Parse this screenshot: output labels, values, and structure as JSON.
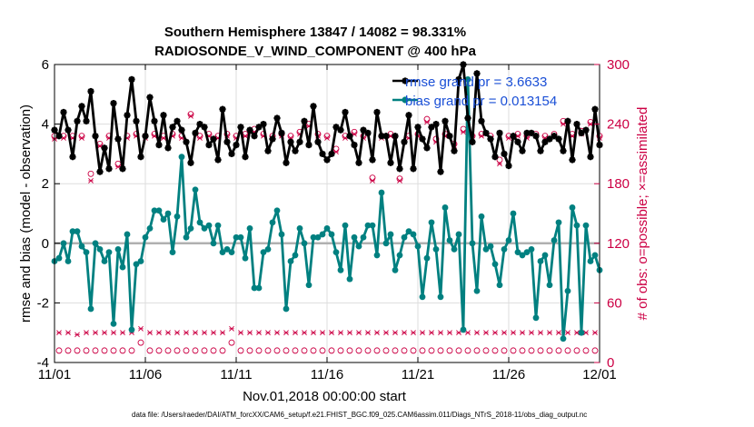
{
  "chart_data": {
    "type": "line",
    "title": "Southern Hemisphere 13847 / 14082 = 98.331%",
    "subtitle": "RADIOSONDE_V_WIND_COMPONENT @ 400 hPa",
    "xlabel": "Nov.01,2018 00:00:00 start",
    "ylabel": "rmse and bias (model - observation)",
    "ylabel_right": "# of obs: o=possible; ×=assimilated",
    "xlim": [
      0,
      30
    ],
    "ylim": [
      -4,
      6
    ],
    "ylim_right": [
      0,
      300
    ],
    "x_ticks": [
      0,
      5,
      10,
      15,
      20,
      25,
      30
    ],
    "x_tick_labels": [
      "11/01",
      "11/06",
      "11/11",
      "11/16",
      "11/21",
      "11/26",
      "12/01"
    ],
    "y_ticks": [
      -4,
      -2,
      0,
      2,
      4,
      6
    ],
    "y_tick_labels": [
      "-4",
      "-2",
      "0",
      "2",
      "4",
      "6"
    ],
    "y_right_ticks": [
      0,
      60,
      120,
      180,
      240,
      300
    ],
    "y_right_tick_labels": [
      "0",
      "60",
      "120",
      "180",
      "240",
      "300"
    ],
    "grid": true,
    "legend_position": "top-right",
    "footer": "data file: /Users/raeder/DAI/ATM_forcXX/CAM6_setup/f.e21.FHIST_BGC.f09_025.CAM6assim.011/Diags_NTrS_2018-11/obs_diag_output.nc",
    "colors": {
      "rmse": "#000000",
      "bias": "#008080",
      "obs": "#cc0044",
      "zero_line": "#b0b0b0"
    },
    "series": [
      {
        "name": "rmse",
        "legend_label": "rmse grand pr = 3.6633",
        "color": "#000000",
        "marker": "star",
        "x": [
          0.0,
          0.25,
          0.5,
          0.75,
          1.0,
          1.25,
          1.5,
          1.75,
          2.0,
          2.25,
          2.5,
          2.75,
          3.0,
          3.25,
          3.5,
          3.75,
          4.0,
          4.25,
          4.5,
          4.75,
          5.0,
          5.25,
          5.5,
          5.75,
          6.0,
          6.25,
          6.5,
          6.75,
          7.0,
          7.25,
          7.5,
          7.75,
          8.0,
          8.25,
          8.5,
          8.75,
          9.0,
          9.25,
          9.5,
          9.75,
          10.0,
          10.25,
          10.5,
          10.75,
          11.0,
          11.25,
          11.5,
          11.75,
          12.0,
          12.25,
          12.5,
          12.75,
          13.0,
          13.25,
          13.5,
          13.75,
          14.0,
          14.25,
          14.5,
          14.75,
          15.0,
          15.25,
          15.5,
          15.75,
          16.0,
          16.25,
          16.5,
          16.75,
          17.0,
          17.25,
          17.5,
          17.75,
          18.0,
          18.25,
          18.5,
          18.75,
          19.0,
          19.25,
          19.5,
          19.75,
          20.0,
          20.25,
          20.5,
          20.75,
          21.0,
          21.25,
          21.5,
          21.75,
          22.0,
          22.25,
          22.5,
          22.75,
          23.0,
          23.25,
          23.5,
          23.75,
          24.0,
          24.25,
          24.5,
          24.75,
          25.0,
          25.25,
          25.5,
          25.75,
          26.0,
          26.25,
          26.5,
          26.75,
          27.0,
          27.25,
          27.5,
          27.75,
          28.0,
          28.25,
          28.5,
          28.75,
          29.0,
          29.25,
          29.5,
          29.75,
          30.0
        ],
        "values": [
          3.8,
          3.6,
          4.4,
          3.8,
          2.9,
          4.1,
          4.6,
          4.1,
          5.1,
          3.6,
          2.4,
          3.2,
          2.5,
          4.7,
          3.5,
          2.5,
          4.3,
          5.5,
          4.1,
          2.9,
          3.6,
          4.9,
          4.1,
          3.3,
          4.3,
          3.2,
          3.9,
          4.1,
          3.8,
          3.4,
          2.7,
          3.7,
          4.0,
          3.9,
          3.3,
          3.5,
          2.8,
          4.5,
          3.4,
          3.0,
          3.3,
          3.9,
          2.9,
          3.8,
          3.6,
          3.9,
          4.0,
          3.1,
          3.5,
          4.2,
          3.7,
          2.7,
          3.4,
          3.1,
          3.4,
          4.1,
          3.3,
          4.6,
          3.4,
          3.0,
          2.8,
          3.0,
          3.9,
          3.8,
          4.4,
          3.6,
          3.3,
          2.7,
          3.8,
          3.7,
          2.8,
          4.4,
          3.6,
          3.6,
          2.7,
          3.6,
          2.5,
          3.4,
          4.3,
          2.5,
          3.9,
          3.5,
          3.2,
          3.9,
          4.0,
          2.4,
          4.1,
          3.6,
          3.1,
          5.5,
          6.0,
          4.2,
          3.4,
          5.7,
          4.1,
          3.7,
          3.5,
          2.9,
          3.7,
          3.0,
          2.6,
          3.6,
          3.4,
          3.1,
          3.7,
          3.7,
          3.6,
          3.1,
          3.4,
          3.5,
          3.6,
          3.5,
          3.1,
          4.1,
          2.8,
          4.0,
          3.7,
          3.8,
          2.9,
          4.5,
          3.3
        ]
      },
      {
        "name": "bias",
        "legend_label": "bias grand pr = 0.013154",
        "color": "#008080",
        "marker": "circle",
        "x": [
          0.0,
          0.25,
          0.5,
          0.75,
          1.0,
          1.25,
          1.5,
          1.75,
          2.0,
          2.25,
          2.5,
          2.75,
          3.0,
          3.25,
          3.5,
          3.75,
          4.0,
          4.25,
          4.5,
          4.75,
          5.0,
          5.25,
          5.5,
          5.75,
          6.0,
          6.25,
          6.5,
          6.75,
          7.0,
          7.25,
          7.5,
          7.75,
          8.0,
          8.25,
          8.5,
          8.75,
          9.0,
          9.25,
          9.5,
          9.75,
          10.0,
          10.25,
          10.5,
          10.75,
          11.0,
          11.25,
          11.5,
          11.75,
          12.0,
          12.25,
          12.5,
          12.75,
          13.0,
          13.25,
          13.5,
          13.75,
          14.0,
          14.25,
          14.5,
          14.75,
          15.0,
          15.25,
          15.5,
          15.75,
          16.0,
          16.25,
          16.5,
          16.75,
          17.0,
          17.25,
          17.5,
          17.75,
          18.0,
          18.25,
          18.5,
          18.75,
          19.0,
          19.25,
          19.5,
          19.75,
          20.0,
          20.25,
          20.5,
          20.75,
          21.0,
          21.25,
          21.5,
          21.75,
          22.0,
          22.25,
          22.5,
          22.75,
          23.0,
          23.25,
          23.5,
          23.75,
          24.0,
          24.25,
          24.5,
          24.75,
          25.0,
          25.25,
          25.5,
          25.75,
          26.0,
          26.25,
          26.5,
          26.75,
          27.0,
          27.25,
          27.5,
          27.75,
          28.0,
          28.25,
          28.5,
          28.75,
          29.0,
          29.25,
          29.5,
          29.75,
          30.0
        ],
        "values": [
          -0.6,
          -0.5,
          0.0,
          -0.6,
          0.4,
          0.4,
          -0.1,
          -0.3,
          -2.2,
          0.0,
          -0.2,
          -0.6,
          -0.3,
          -2.7,
          -0.2,
          -0.8,
          0.3,
          -2.9,
          -0.7,
          -0.6,
          0.2,
          0.5,
          1.1,
          1.1,
          0.8,
          1.0,
          -0.3,
          0.9,
          2.9,
          0.2,
          0.5,
          1.8,
          0.7,
          0.5,
          0.6,
          0.0,
          0.6,
          -0.3,
          -0.2,
          -0.3,
          0.2,
          0.2,
          -0.5,
          0.5,
          -1.5,
          -1.5,
          -0.3,
          -0.2,
          0.7,
          1.1,
          0.3,
          -2.2,
          -0.6,
          -0.4,
          0.5,
          0.0,
          -1.4,
          0.2,
          0.2,
          0.3,
          0.5,
          0.3,
          -0.3,
          -0.9,
          0.6,
          -1.2,
          0.2,
          -0.1,
          0.2,
          0.6,
          0.6,
          -0.4,
          1.7,
          0.0,
          0.3,
          -0.9,
          -0.4,
          0.2,
          0.4,
          0.3,
          -0.1,
          -1.8,
          -0.5,
          0.7,
          -0.2,
          -1.8,
          1.2,
          0.1,
          -0.2,
          0.3,
          -2.9,
          5.5,
          0.0,
          -1.6,
          0.9,
          -0.2,
          -0.1,
          -0.7,
          -1.4,
          -0.2,
          0.1,
          1.0,
          -0.3,
          -0.4,
          -0.3,
          -0.2,
          -2.5,
          -0.6,
          -0.4,
          -1.4,
          0.1,
          0.7,
          -3.2,
          -1.6,
          1.2,
          0.6,
          -3.0,
          0.6,
          -0.6,
          -0.4,
          -0.9
        ]
      },
      {
        "name": "obs possible",
        "color": "#cc0044",
        "marker": "o",
        "axis": "right",
        "x": [
          0.0,
          0.25,
          0.5,
          0.75,
          1.0,
          1.25,
          1.5,
          1.75,
          2.0,
          2.25,
          2.5,
          2.75,
          3.0,
          3.25,
          3.5,
          3.75,
          4.0,
          4.25,
          4.5,
          4.75,
          5.0,
          5.25,
          5.5,
          5.75,
          6.0,
          6.25,
          6.5,
          6.75,
          7.0,
          7.25,
          7.5,
          7.75,
          8.0,
          8.25,
          8.5,
          8.75,
          9.0,
          9.25,
          9.5,
          9.75,
          10.0,
          10.25,
          10.5,
          10.75,
          11.0,
          11.25,
          11.5,
          11.75,
          12.0,
          12.25,
          12.5,
          12.75,
          13.0,
          13.25,
          13.5,
          13.75,
          14.0,
          14.25,
          14.5,
          14.75,
          15.0,
          15.25,
          15.5,
          15.75,
          16.0,
          16.25,
          16.5,
          16.75,
          17.0,
          17.25,
          17.5,
          17.75,
          18.0,
          18.25,
          18.5,
          18.75,
          19.0,
          19.25,
          19.5,
          19.75,
          20.0,
          20.25,
          20.5,
          20.75,
          21.0,
          21.25,
          21.5,
          21.75,
          22.0,
          22.25,
          22.5,
          22.75,
          23.0,
          23.25,
          23.5,
          23.75,
          24.0,
          24.25,
          24.5,
          24.75,
          25.0,
          25.25,
          25.5,
          25.75,
          26.0,
          26.25,
          26.5,
          26.75,
          27.0,
          27.25,
          27.5,
          27.75,
          28.0,
          28.25,
          28.5,
          28.75,
          29.0,
          29.25,
          29.5,
          29.75,
          30.0
        ],
        "values": [
          228,
          12,
          228,
          12,
          228,
          12,
          228,
          12,
          190,
          12,
          220,
          12,
          228,
          12,
          200,
          12,
          228,
          12,
          230,
          20,
          228,
          12,
          230,
          12,
          228,
          12,
          230,
          12,
          228,
          12,
          250,
          12,
          228,
          12,
          230,
          12,
          228,
          12,
          230,
          20,
          228,
          12,
          230,
          12,
          235,
          12,
          230,
          12,
          228,
          12,
          230,
          12,
          228,
          12,
          232,
          12,
          240,
          12,
          230,
          12,
          228,
          12,
          215,
          12,
          228,
          12,
          232,
          12,
          228,
          12,
          186,
          12,
          228,
          12,
          230,
          12,
          185,
          12,
          228,
          12,
          230,
          12,
          245,
          12,
          225,
          12,
          230,
          12,
          220,
          12,
          235,
          12,
          228,
          12,
          230,
          12,
          228,
          12,
          204,
          12,
          228,
          12,
          230,
          12,
          228,
          12,
          230,
          12,
          228,
          12,
          230,
          12,
          243,
          12,
          230,
          12,
          233,
          12,
          242,
          12,
          228
        ]
      },
      {
        "name": "obs assimilated",
        "color": "#cc0044",
        "marker": "x",
        "axis": "right",
        "x": [
          0.0,
          0.25,
          0.5,
          0.75,
          1.0,
          1.25,
          1.5,
          1.75,
          2.0,
          2.25,
          2.5,
          2.75,
          3.0,
          3.25,
          3.5,
          3.75,
          4.0,
          4.25,
          4.5,
          4.75,
          5.0,
          5.25,
          5.5,
          5.75,
          6.0,
          6.25,
          6.5,
          6.75,
          7.0,
          7.25,
          7.5,
          7.75,
          8.0,
          8.25,
          8.5,
          8.75,
          9.0,
          9.25,
          9.5,
          9.75,
          10.0,
          10.25,
          10.5,
          10.75,
          11.0,
          11.25,
          11.5,
          11.75,
          12.0,
          12.25,
          12.5,
          12.75,
          13.0,
          13.25,
          13.5,
          13.75,
          14.0,
          14.25,
          14.5,
          14.75,
          15.0,
          15.25,
          15.5,
          15.75,
          16.0,
          16.25,
          16.5,
          16.75,
          17.0,
          17.25,
          17.5,
          17.75,
          18.0,
          18.25,
          18.5,
          18.75,
          19.0,
          19.25,
          19.5,
          19.75,
          20.0,
          20.25,
          20.5,
          20.75,
          21.0,
          21.25,
          21.5,
          21.75,
          22.0,
          22.25,
          22.5,
          22.75,
          23.0,
          23.25,
          23.5,
          23.75,
          24.0,
          24.25,
          24.5,
          24.75,
          25.0,
          25.25,
          25.5,
          25.75,
          26.0,
          26.25,
          26.5,
          26.75,
          27.0,
          27.25,
          27.5,
          27.75,
          28.0,
          28.25,
          28.5,
          28.75,
          29.0,
          29.25,
          29.5,
          29.75,
          30.0
        ],
        "values": [
          225,
          30,
          226,
          30,
          226,
          28,
          226,
          30,
          183,
          30,
          218,
          30,
          226,
          30,
          197,
          30,
          226,
          30,
          228,
          34,
          226,
          30,
          228,
          30,
          226,
          30,
          228,
          30,
          226,
          30,
          248,
          30,
          226,
          30,
          228,
          30,
          226,
          30,
          228,
          34,
          226,
          30,
          228,
          30,
          232,
          30,
          228,
          30,
          226,
          30,
          228,
          30,
          226,
          30,
          230,
          30,
          238,
          30,
          228,
          30,
          226,
          30,
          212,
          30,
          226,
          30,
          230,
          30,
          226,
          30,
          183,
          30,
          226,
          30,
          228,
          30,
          183,
          30,
          226,
          30,
          228,
          30,
          242,
          30,
          222,
          30,
          228,
          30,
          218,
          30,
          232,
          30,
          226,
          30,
          228,
          30,
          226,
          30,
          200,
          30,
          226,
          30,
          228,
          30,
          226,
          30,
          228,
          30,
          226,
          30,
          228,
          30,
          240,
          30,
          228,
          30,
          230,
          30,
          240,
          30,
          226
        ]
      }
    ]
  }
}
